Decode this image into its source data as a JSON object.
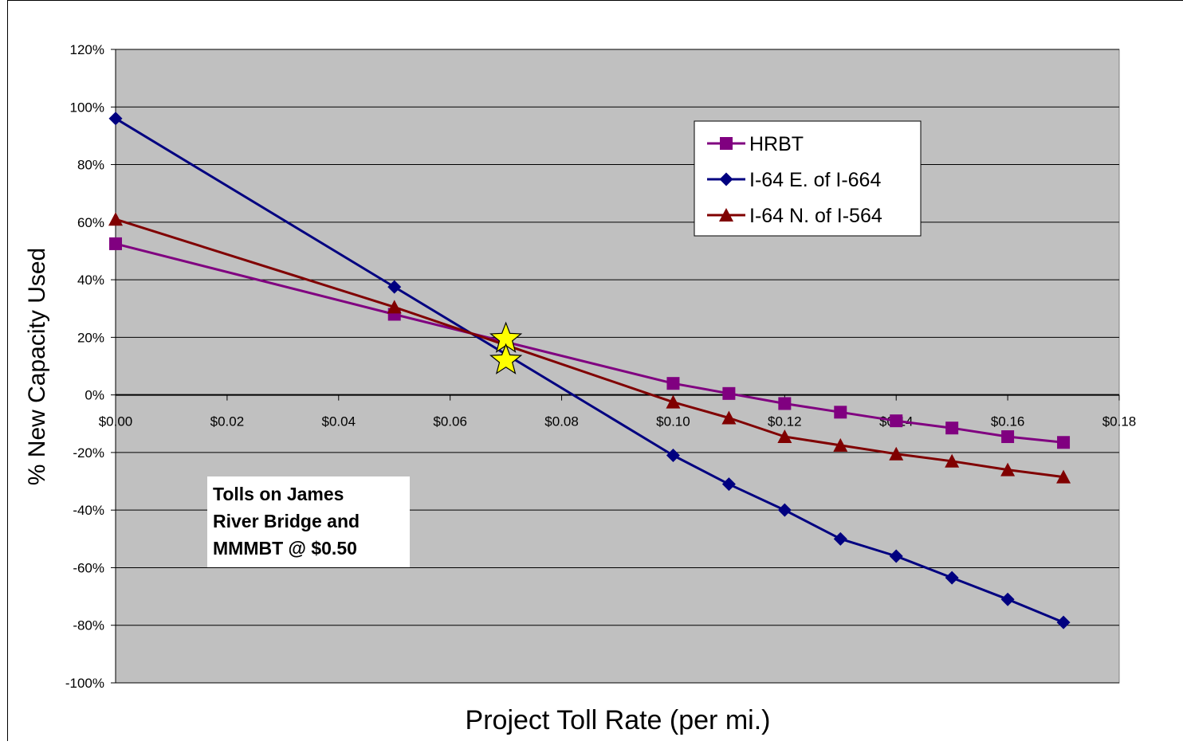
{
  "chart_data": {
    "type": "line",
    "title": "",
    "xlabel": "Project Toll Rate (per mi.)",
    "ylabel": "% New Capacity Used",
    "xlim": [
      0,
      0.18
    ],
    "ylim": [
      -100,
      120
    ],
    "x_ticks": [
      0,
      0.02,
      0.04,
      0.06,
      0.08,
      0.1,
      0.12,
      0.14,
      0.16,
      0.18
    ],
    "x_tick_labels": [
      "$0.00",
      "$0.02",
      "$0.04",
      "$0.06",
      "$0.08",
      "$0.10",
      "$0.12",
      "$0.14",
      "$0.16",
      "$0.18"
    ],
    "y_ticks": [
      -100,
      -80,
      -60,
      -40,
      -20,
      0,
      20,
      40,
      60,
      80,
      100,
      120
    ],
    "y_tick_labels": [
      "-100%",
      "-80%",
      "-60%",
      "-40%",
      "-20%",
      "0%",
      "20%",
      "40%",
      "60%",
      "80%",
      "100%",
      "120%"
    ],
    "grid": "horizontal",
    "legend_position": "top-right",
    "plot_background": "#C0C0C0",
    "series": [
      {
        "name": "HRBT",
        "color": "#800080",
        "marker": "square",
        "x": [
          0,
          0.05,
          0.1,
          0.11,
          0.12,
          0.13,
          0.14,
          0.15,
          0.16,
          0.17
        ],
        "y": [
          52.5,
          28,
          4,
          0.5,
          -3,
          -6,
          -9,
          -11.5,
          -14.5,
          -16.5
        ]
      },
      {
        "name": "I-64 E. of I-664",
        "color": "#000080",
        "marker": "diamond",
        "x": [
          0,
          0.05,
          0.1,
          0.11,
          0.12,
          0.13,
          0.14,
          0.15,
          0.16,
          0.17
        ],
        "y": [
          96,
          37.5,
          -21,
          -31,
          -40,
          -50,
          -56,
          -63.5,
          -71,
          -79
        ]
      },
      {
        "name": "I-64 N. of I-564",
        "color": "#800000",
        "marker": "triangle",
        "x": [
          0,
          0.05,
          0.1,
          0.11,
          0.12,
          0.13,
          0.14,
          0.15,
          0.16,
          0.17
        ],
        "y": [
          61,
          30.5,
          -2.5,
          -8,
          -14.5,
          -17.5,
          -20.5,
          -23,
          -26,
          -28.5
        ]
      }
    ],
    "annotations": {
      "star_markers": {
        "color": "#FFFF00",
        "points": [
          {
            "x": 0.07,
            "y": 19.5
          },
          {
            "x": 0.07,
            "y": 12
          }
        ]
      },
      "note_box": {
        "lines": [
          "Tolls on James",
          "River Bridge and",
          "MMMBT @ $0.50"
        ]
      }
    }
  }
}
